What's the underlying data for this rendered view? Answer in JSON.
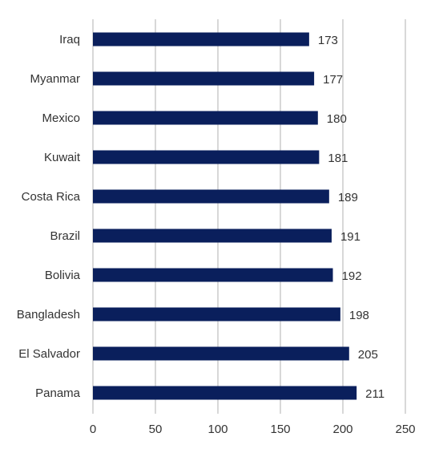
{
  "chart_data": {
    "type": "bar",
    "orientation": "horizontal",
    "categories": [
      "Iraq",
      "Myanmar",
      "Mexico",
      "Kuwait",
      "Costa Rica",
      "Brazil",
      "Bolivia",
      "Bangladesh",
      "El Salvador",
      "Panama"
    ],
    "values": [
      173,
      177,
      180,
      181,
      189,
      191,
      192,
      198,
      205,
      211
    ],
    "title": "",
    "xlabel": "",
    "ylabel": "",
    "xlim": [
      0,
      250
    ],
    "x_ticks": [
      "0",
      "50",
      "100",
      "150",
      "200",
      "250"
    ],
    "grid": "vertical",
    "legend": "none",
    "bar_color": "#0a1f5c",
    "grid_color": "#cccccc",
    "text_color": "#333333"
  }
}
